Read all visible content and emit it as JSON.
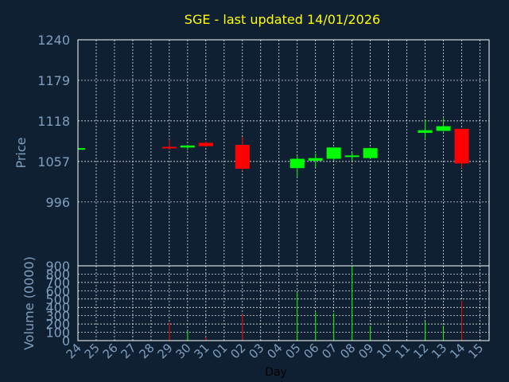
{
  "colors": {
    "background": "#0f2033",
    "up": "#00ff00",
    "down": "#ff0000",
    "grid": "#ffffff",
    "axis_text": "#7f9fbf",
    "title": "#ffff00"
  },
  "chart_data": {
    "type": "candlestick",
    "title": "SGE - last updated 14/01/2026",
    "xlabel": "Day",
    "price_panel": {
      "ylabel": "Price",
      "ylim": [
        900,
        1240
      ],
      "yticks": [
        "900",
        "996",
        "1057",
        "1118",
        "1179",
        "1240"
      ]
    },
    "volume_panel": {
      "ylabel": "Volume (0000)",
      "ylim": [
        0,
        900
      ],
      "yticks": [
        "0",
        "100",
        "200",
        "300",
        "400",
        "500",
        "600",
        "700",
        "800"
      ]
    },
    "x_tick_labels": [
      "24",
      "25",
      "26",
      "27",
      "28",
      "29",
      "30",
      "31",
      "01",
      "02",
      "03",
      "04",
      "05",
      "06",
      "07",
      "08",
      "09",
      "10",
      "11",
      "12",
      "13",
      "14",
      "15"
    ],
    "grid": true,
    "candles": [
      {
        "day": "24",
        "open": 1077,
        "high": 1077,
        "low": 1077,
        "close": 1077,
        "volume": 0
      },
      {
        "day": "29",
        "open": 1079,
        "high": 1090,
        "low": 1075,
        "close": 1077,
        "volume": 220
      },
      {
        "day": "30",
        "open": 1078,
        "high": 1082,
        "low": 1074,
        "close": 1081,
        "volume": 120
      },
      {
        "day": "31",
        "open": 1085,
        "high": 1087,
        "low": 1079,
        "close": 1080,
        "volume": 40
      },
      {
        "day": "02",
        "open": 1082,
        "high": 1094,
        "low": 1043,
        "close": 1046,
        "volume": 320
      },
      {
        "day": "05",
        "open": 1047,
        "high": 1065,
        "low": 1034,
        "close": 1061,
        "volume": 580
      },
      {
        "day": "06",
        "open": 1058,
        "high": 1069,
        "low": 1048,
        "close": 1062,
        "volume": 340
      },
      {
        "day": "07",
        "open": 1061,
        "high": 1078,
        "low": 1058,
        "close": 1078,
        "volume": 330
      },
      {
        "day": "08",
        "open": 1066,
        "high": 1070,
        "low": 1058,
        "close": 1066,
        "volume": 900
      },
      {
        "day": "09",
        "open": 1062,
        "high": 1078,
        "low": 1061,
        "close": 1077,
        "volume": 180
      },
      {
        "day": "12",
        "open": 1100,
        "high": 1119,
        "low": 1092,
        "close": 1104,
        "volume": 230
      },
      {
        "day": "13",
        "open": 1103,
        "high": 1122,
        "low": 1102,
        "close": 1110,
        "volume": 180
      },
      {
        "day": "14",
        "open": 1106,
        "high": 1106,
        "low": 1047,
        "close": 1054,
        "volume": 480
      }
    ]
  }
}
